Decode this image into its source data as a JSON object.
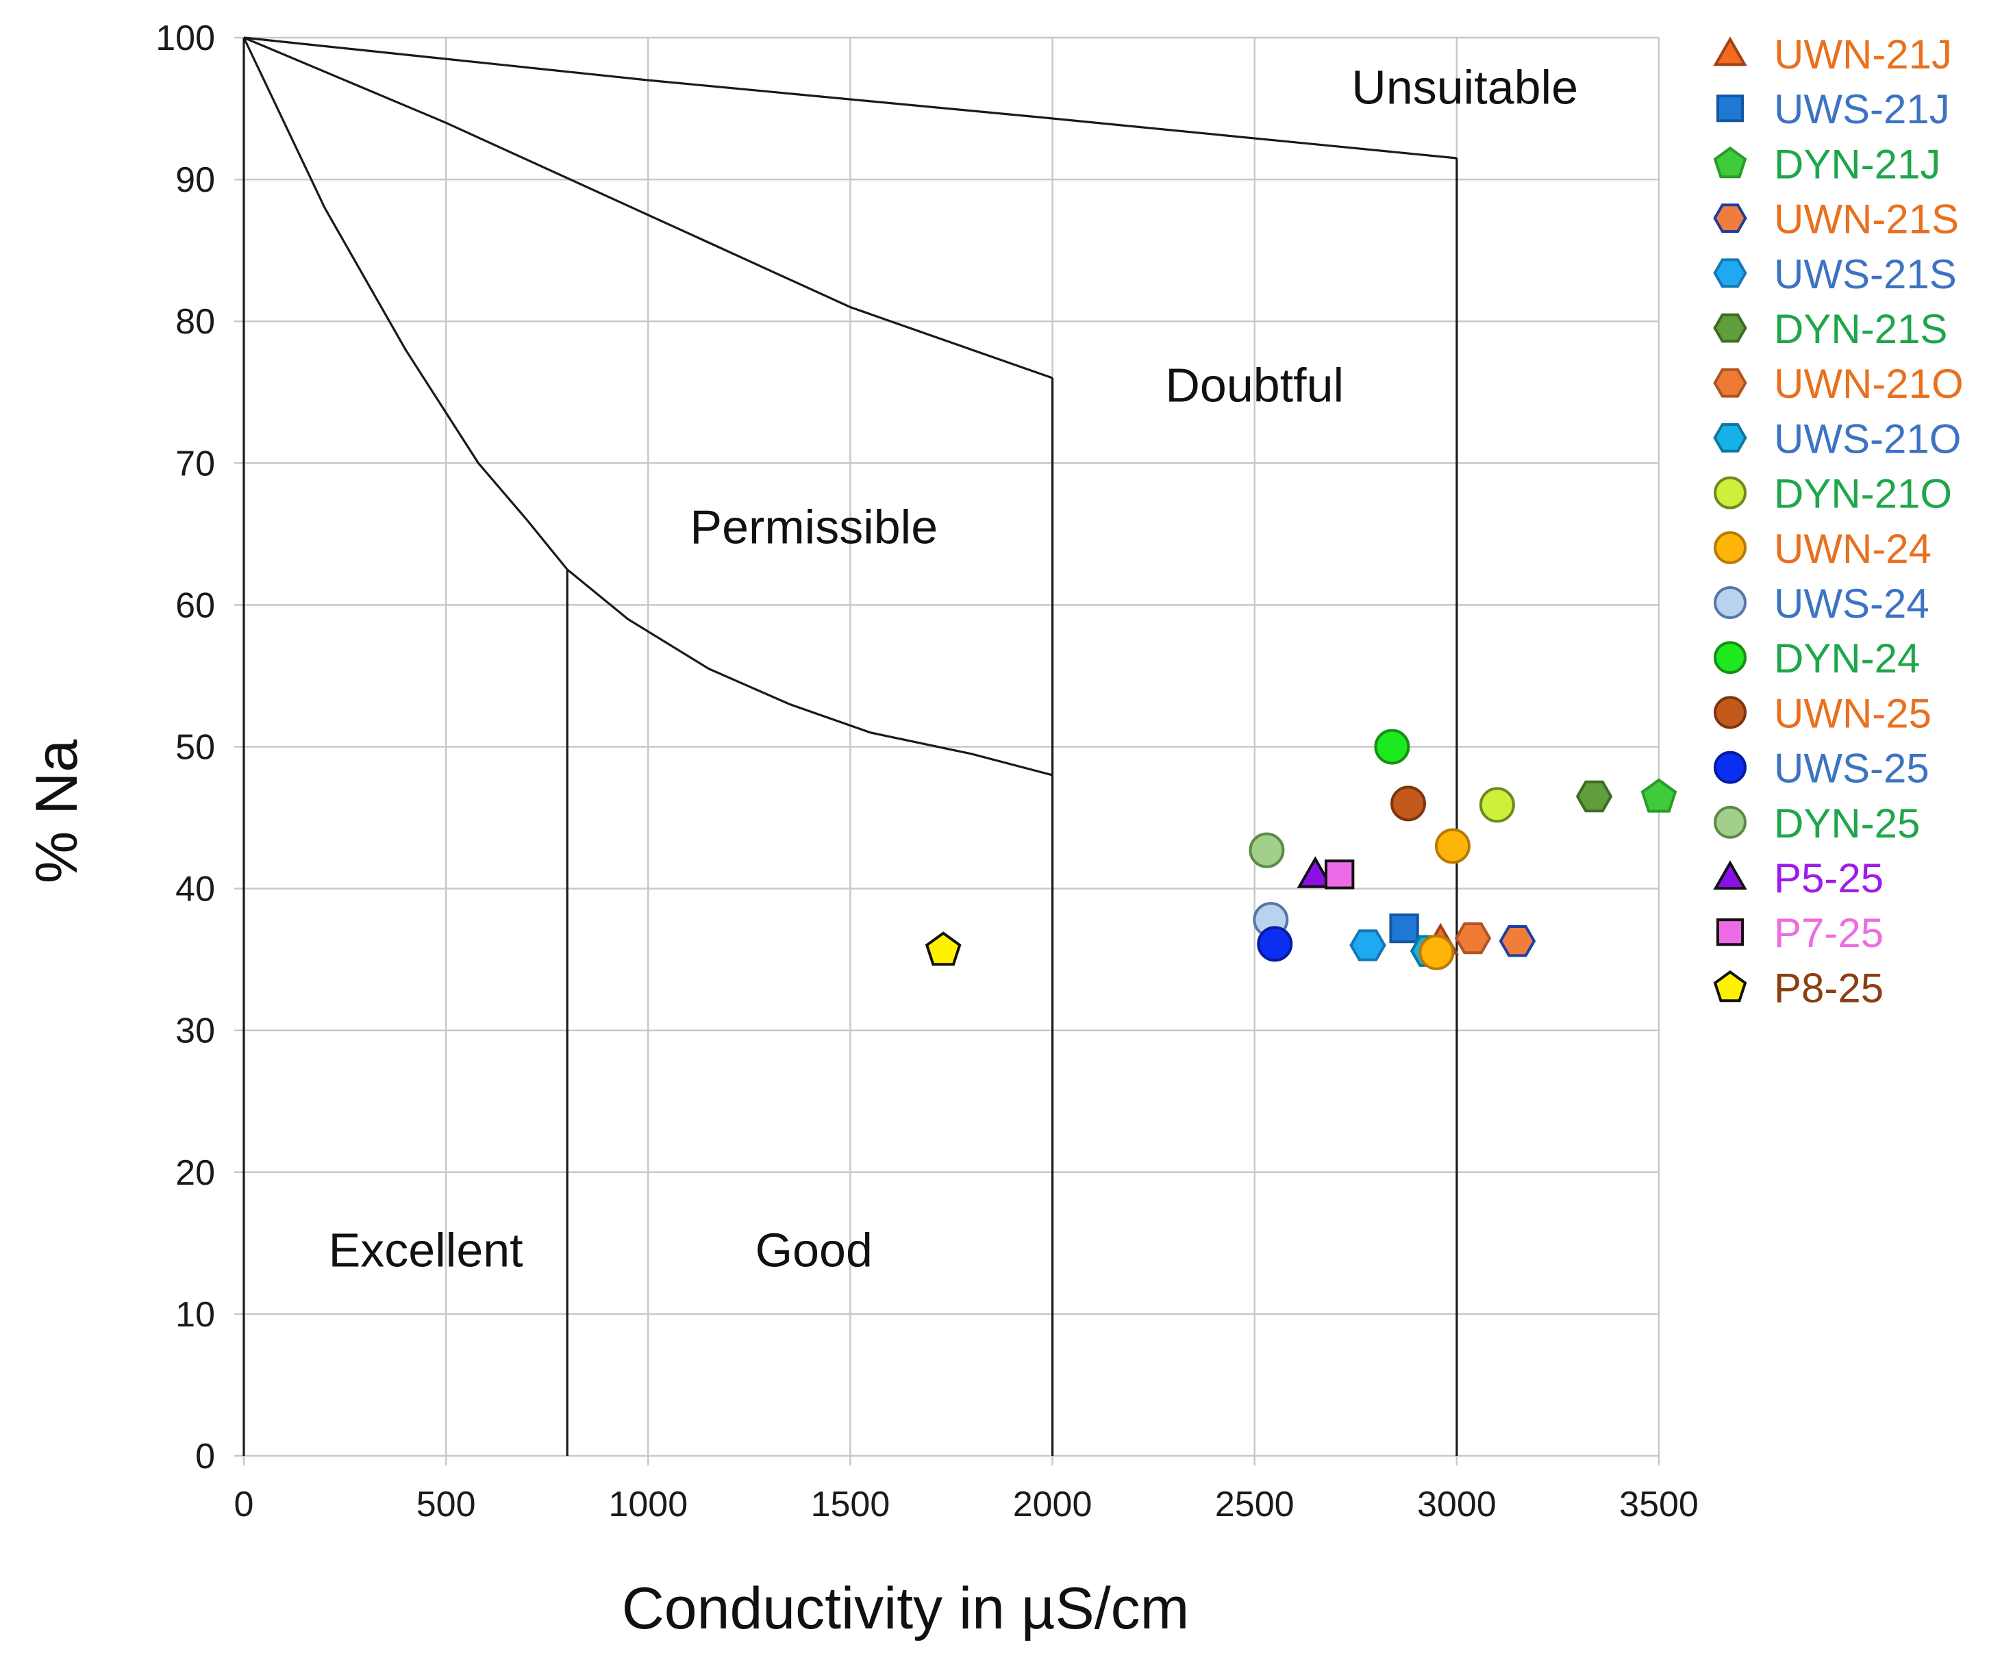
{
  "chart_data": {
    "type": "scatter",
    "title": "",
    "xlabel": "Conductivity in µS/cm",
    "ylabel": "% Na",
    "xlim": [
      0,
      3500
    ],
    "ylim": [
      0,
      100
    ],
    "x_ticks": [
      0,
      500,
      1000,
      1500,
      2000,
      2500,
      3000,
      3500
    ],
    "y_ticks": [
      0,
      10,
      20,
      30,
      40,
      50,
      60,
      70,
      80,
      90,
      100
    ],
    "grid": true,
    "legend_position": "right",
    "boundaries": [
      [
        [
          0,
          100
        ],
        [
          200,
          88
        ],
        [
          400,
          78
        ],
        [
          580,
          70
        ],
        [
          700,
          66
        ],
        [
          800,
          62.5
        ],
        [
          950,
          59
        ],
        [
          1150,
          55.5
        ],
        [
          1350,
          53
        ],
        [
          1550,
          51
        ],
        [
          1800,
          49.5
        ],
        [
          2000,
          48
        ]
      ],
      [
        [
          0,
          100
        ],
        [
          500,
          94
        ],
        [
          1000,
          87.5
        ],
        [
          1500,
          81
        ],
        [
          1800,
          78
        ],
        [
          2000,
          76
        ]
      ],
      [
        [
          0,
          100
        ],
        [
          1000,
          97
        ],
        [
          2000,
          94.3
        ],
        [
          3000,
          91.5
        ]
      ],
      [
        [
          0,
          0
        ],
        [
          0,
          100
        ]
      ],
      [
        [
          800,
          0
        ],
        [
          800,
          62.5
        ]
      ],
      [
        [
          2000,
          0
        ],
        [
          2000,
          48
        ]
      ],
      [
        [
          2000,
          48
        ],
        [
          2000,
          76
        ]
      ],
      [
        [
          3000,
          0
        ],
        [
          3000,
          91.5
        ]
      ]
    ],
    "zones": [
      {
        "label": "Excellent",
        "x": 450,
        "y": 14.5
      },
      {
        "label": "Good",
        "x": 1410,
        "y": 14.5
      },
      {
        "label": "Permissible",
        "x": 1410,
        "y": 65.5
      },
      {
        "label": "Doubtful",
        "x": 2500,
        "y": 75.5
      },
      {
        "label": "Unsuitable",
        "x": 3020,
        "y": 96.5
      }
    ],
    "series": [
      {
        "name": "UWN-21J",
        "shape": "triangle",
        "fill": "#F26B21",
        "stroke": "#A54015",
        "text_color": "#E8701E",
        "points": [
          [
            2960,
            36.3
          ]
        ]
      },
      {
        "name": "UWS-21J",
        "shape": "square",
        "fill": "#1F78D4",
        "stroke": "#1357A0",
        "text_color": "#3C73C3",
        "points": [
          [
            2870,
            37.2
          ]
        ]
      },
      {
        "name": "DYN-21J",
        "shape": "pentagon",
        "fill": "#3FCB3A",
        "stroke": "#2A9B2A",
        "text_color": "#1FA64A",
        "points": [
          [
            3500,
            46.5
          ]
        ]
      },
      {
        "name": "UWN-21S",
        "shape": "hexagon",
        "fill": "#EF7D3B",
        "stroke": "#1E3FA0",
        "text_color": "#E8701E",
        "points": [
          [
            3150,
            36.3
          ]
        ]
      },
      {
        "name": "UWS-21S",
        "shape": "hexagon",
        "fill": "#1EA9F0",
        "stroke": "#1577B8",
        "text_color": "#3C73C3",
        "points": [
          [
            2780,
            36.0
          ]
        ]
      },
      {
        "name": "DYN-21S",
        "shape": "hexagon",
        "fill": "#5F9E3A",
        "stroke": "#3D6B25",
        "text_color": "#1FA64A",
        "points": [
          [
            3340,
            46.5
          ]
        ]
      },
      {
        "name": "UWN-21O",
        "shape": "hexagon",
        "fill": "#EE7B35",
        "stroke": "#B05223",
        "text_color": "#E8701E",
        "points": [
          [
            3040,
            36.5
          ]
        ]
      },
      {
        "name": "UWS-21O",
        "shape": "hexagon",
        "fill": "#18B0E8",
        "stroke": "#0D78A0",
        "text_color": "#3C73C3",
        "points": [
          [
            2930,
            35.6
          ]
        ]
      },
      {
        "name": "DYN-21O",
        "shape": "circle",
        "fill": "#CDF03A",
        "stroke": "#6E8A1E",
        "text_color": "#1FA64A",
        "points": [
          [
            3100,
            45.9
          ]
        ]
      },
      {
        "name": "UWN-24",
        "shape": "circle",
        "fill": "#FFB40A",
        "stroke": "#B87A06",
        "text_color": "#E8701E",
        "points": [
          [
            2990,
            43.0
          ],
          [
            2950,
            35.5
          ]
        ]
      },
      {
        "name": "UWS-24",
        "shape": "circle",
        "fill": "#B9D3EE",
        "stroke": "#5577A8",
        "text_color": "#3C73C3",
        "points": [
          [
            2540,
            37.8
          ]
        ]
      },
      {
        "name": "DYN-24",
        "shape": "circle",
        "fill": "#1EE81E",
        "stroke": "#159015",
        "text_color": "#1FA64A",
        "points": [
          [
            2840,
            50.0
          ]
        ]
      },
      {
        "name": "UWN-25",
        "shape": "circle",
        "fill": "#C3591B",
        "stroke": "#7D3510",
        "text_color": "#E8701E",
        "points": [
          [
            2880,
            46.0
          ]
        ]
      },
      {
        "name": "UWS-25",
        "shape": "circle",
        "fill": "#0A2FF0",
        "stroke": "#061B9E",
        "text_color": "#3C73C3",
        "points": [
          [
            2550,
            36.1
          ]
        ]
      },
      {
        "name": "DYN-25",
        "shape": "circle",
        "fill": "#A2D08A",
        "stroke": "#5E8A48",
        "text_color": "#1FA64A",
        "points": [
          [
            2530,
            42.7
          ]
        ]
      },
      {
        "name": "P5-25",
        "shape": "triangle",
        "fill": "#8B10E8",
        "stroke": "#111111",
        "text_color": "#A01BE8",
        "points": [
          [
            2650,
            41.0
          ]
        ]
      },
      {
        "name": "P7-25",
        "shape": "square",
        "fill": "#EE6BE8",
        "stroke": "#111111",
        "text_color": "#EE6BE0",
        "points": [
          [
            2710,
            41.0
          ]
        ]
      },
      {
        "name": "P8-25",
        "shape": "pentagon",
        "fill": "#FFF200",
        "stroke": "#111111",
        "text_color": "#8B3E12",
        "points": [
          [
            1730,
            35.7
          ]
        ]
      }
    ]
  }
}
